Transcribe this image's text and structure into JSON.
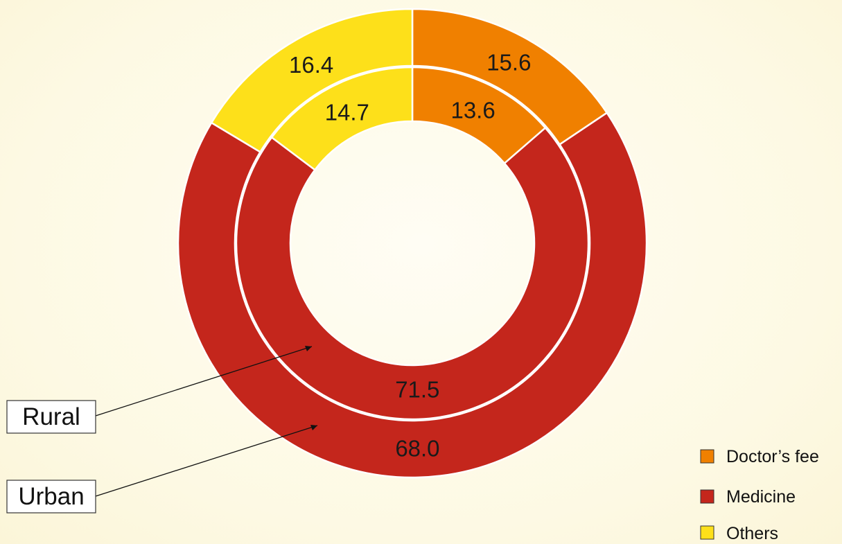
{
  "chart_data": {
    "type": "pie",
    "variant": "nested-donut",
    "categories": [
      "Doctor’s fee",
      "Medicine",
      "Others"
    ],
    "colors": [
      "#f08000",
      "#c4261c",
      "#fde01a"
    ],
    "series": [
      {
        "name": "Rural",
        "values": [
          13.6,
          71.5,
          14.7
        ]
      },
      {
        "name": "Urban",
        "values": [
          15.6,
          68.0,
          16.4
        ]
      }
    ],
    "legend_position": "bottom-right"
  }
}
